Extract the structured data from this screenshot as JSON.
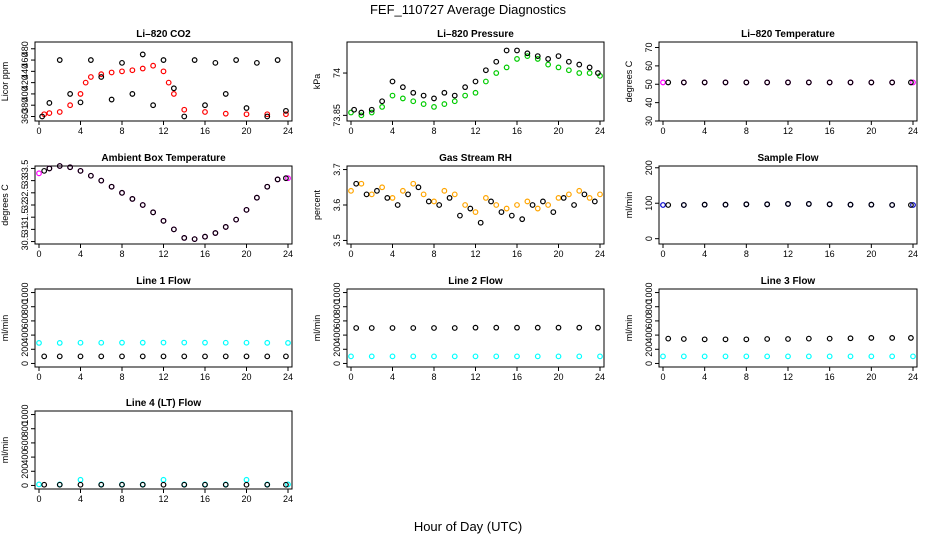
{
  "figure": {
    "title": "FEF_110727  Average Diagnostics",
    "xlabel": "Hour of Day (UTC)"
  },
  "chart_data": [
    {
      "type": "scatter",
      "title": "Li–820 CO2",
      "ylabel": "Licor ppm",
      "xlim": [
        0,
        24
      ],
      "xticks": [
        0,
        4,
        8,
        12,
        16,
        20,
        24
      ],
      "ylim": [
        352,
        492
      ],
      "yticks": [
        360,
        380,
        400,
        420,
        440,
        460,
        480
      ],
      "series": [
        {
          "color": "#ff0000",
          "x": [
            0.5,
            1,
            2,
            3,
            4,
            4.5,
            5,
            6,
            7,
            8,
            9,
            10,
            11,
            12,
            12.5,
            13,
            14,
            16,
            18,
            20,
            22,
            23.8
          ],
          "y": [
            364,
            366,
            368,
            380,
            400,
            420,
            430,
            435,
            438,
            440,
            442,
            445,
            450,
            440,
            420,
            400,
            372,
            368,
            365,
            364,
            364,
            364
          ]
        },
        {
          "color": "#000000",
          "x": [
            0.3,
            1,
            2,
            3,
            4,
            5,
            6,
            7,
            8,
            9,
            10,
            11,
            12,
            13,
            14,
            15,
            16,
            17,
            18,
            19,
            20,
            21,
            22,
            23,
            23.8
          ],
          "y": [
            360,
            384,
            460,
            400,
            385,
            460,
            430,
            390,
            455,
            400,
            470,
            380,
            460,
            410,
            360,
            460,
            380,
            455,
            400,
            460,
            375,
            455,
            360,
            460,
            370
          ]
        }
      ]
    },
    {
      "type": "scatter",
      "title": "Li–820 Pressure",
      "ylabel": "kPa",
      "xlim": [
        0,
        24
      ],
      "xticks": [
        0,
        4,
        8,
        12,
        16,
        20,
        24
      ],
      "ylim": [
        73.83,
        74.11
      ],
      "yticks": [
        73.85,
        74.0
      ],
      "series": [
        {
          "color": "#00cc00",
          "x": [
            0,
            1,
            2,
            3,
            4,
            5,
            6,
            7,
            8,
            9,
            10,
            11,
            12,
            13,
            14,
            15,
            16,
            17,
            18,
            19,
            20,
            21,
            22,
            23,
            24
          ],
          "y": [
            73.86,
            73.85,
            73.86,
            73.88,
            73.92,
            73.91,
            73.9,
            73.89,
            73.88,
            73.89,
            73.9,
            73.92,
            73.93,
            73.97,
            74.0,
            74.02,
            74.05,
            74.06,
            74.05,
            74.03,
            74.02,
            74.01,
            74.0,
            74.0,
            73.99
          ]
        },
        {
          "color": "#000000",
          "x": [
            0.3,
            1,
            2,
            3,
            4,
            5,
            6,
            7,
            8,
            9,
            10,
            11,
            12,
            13,
            14,
            15,
            16,
            17,
            18,
            19,
            20,
            21,
            22,
            23,
            23.8
          ],
          "y": [
            73.87,
            73.86,
            73.87,
            73.9,
            73.97,
            73.95,
            73.93,
            73.92,
            73.91,
            73.93,
            73.92,
            73.95,
            73.97,
            74.01,
            74.04,
            74.08,
            74.08,
            74.07,
            74.06,
            74.05,
            74.06,
            74.04,
            74.03,
            74.02,
            74.0
          ]
        }
      ]
    },
    {
      "type": "scatter",
      "title": "Li–820 Temperature",
      "ylabel": "degrees C",
      "xlim": [
        0,
        24
      ],
      "xticks": [
        0,
        4,
        8,
        12,
        16,
        20,
        24
      ],
      "ylim": [
        30,
        73
      ],
      "yticks": [
        30,
        40,
        50,
        60,
        70
      ],
      "series": [
        {
          "color": "#ff00ff",
          "x": [
            0,
            2,
            4,
            6,
            8,
            10,
            12,
            14,
            16,
            18,
            20,
            22,
            24
          ],
          "y": [
            51,
            51,
            51,
            51,
            51,
            51,
            51,
            51,
            51,
            51,
            51,
            51,
            51
          ]
        },
        {
          "color": "#000000",
          "x": [
            0.5,
            2,
            4,
            6,
            8,
            10,
            12,
            14,
            16,
            18,
            20,
            22,
            23.8
          ],
          "y": [
            51,
            51,
            51,
            51,
            51,
            51,
            51,
            51,
            51,
            51,
            51,
            51,
            51
          ]
        }
      ]
    },
    {
      "type": "scatter",
      "title": "Ambient Box Temperature",
      "ylabel": "degrees C",
      "xlim": [
        0,
        24
      ],
      "xticks": [
        0,
        4,
        8,
        12,
        16,
        20,
        24
      ],
      "ylim": [
        30.4,
        33.6
      ],
      "yticks": [
        30.5,
        31.0,
        31.5,
        32.0,
        32.5,
        33.0,
        33.5
      ],
      "series": [
        {
          "color": "#ff00ff",
          "x": [
            0,
            1,
            2,
            3,
            4,
            5,
            6,
            7,
            8,
            9,
            10,
            11,
            12,
            13,
            14,
            15,
            16,
            17,
            18,
            19,
            20,
            21,
            22,
            23,
            24
          ],
          "y": [
            33.3,
            33.5,
            33.6,
            33.55,
            33.4,
            33.2,
            33.0,
            32.75,
            32.5,
            32.25,
            32.0,
            31.7,
            31.35,
            31.0,
            30.65,
            30.6,
            30.7,
            30.85,
            31.1,
            31.4,
            31.8,
            32.3,
            32.75,
            33.05,
            33.1
          ]
        },
        {
          "color": "#000000",
          "x": [
            0.5,
            1,
            2,
            3,
            4,
            5,
            6,
            7,
            8,
            9,
            10,
            11,
            12,
            13,
            14,
            15,
            16,
            17,
            18,
            19,
            20,
            21,
            22,
            23,
            23.8
          ],
          "y": [
            33.4,
            33.5,
            33.6,
            33.55,
            33.4,
            33.2,
            33.0,
            32.75,
            32.5,
            32.25,
            32.0,
            31.7,
            31.35,
            31.0,
            30.65,
            30.6,
            30.7,
            30.85,
            31.1,
            31.4,
            31.8,
            32.3,
            32.75,
            33.05,
            33.1
          ]
        }
      ]
    },
    {
      "type": "scatter",
      "title": "Gas Stream RH",
      "ylabel": "percent",
      "xlim": [
        0,
        24
      ],
      "xticks": [
        0,
        4,
        8,
        12,
        16,
        20,
        24
      ],
      "ylim": [
        3.49,
        3.71
      ],
      "yticks": [
        3.5,
        3.6,
        3.7
      ],
      "series": [
        {
          "color": "#ffa500",
          "x": [
            0,
            1,
            2,
            3,
            4,
            5,
            6,
            7,
            8,
            9,
            10,
            11,
            12,
            13,
            14,
            15,
            16,
            17,
            18,
            19,
            20,
            21,
            22,
            23,
            24
          ],
          "y": [
            3.64,
            3.66,
            3.63,
            3.65,
            3.62,
            3.64,
            3.66,
            3.63,
            3.61,
            3.64,
            3.63,
            3.6,
            3.58,
            3.62,
            3.6,
            3.59,
            3.6,
            3.61,
            3.59,
            3.6,
            3.62,
            3.63,
            3.64,
            3.62,
            3.63
          ]
        },
        {
          "color": "#000000",
          "x": [
            0.5,
            1.5,
            2.5,
            3.5,
            4.5,
            5.5,
            6.5,
            7.5,
            8.5,
            9.5,
            10.5,
            11.5,
            12.5,
            13.5,
            14.5,
            15.5,
            16.5,
            17.5,
            18.5,
            19.5,
            20.5,
            21.5,
            22.5,
            23.5
          ],
          "y": [
            3.66,
            3.63,
            3.64,
            3.62,
            3.6,
            3.63,
            3.65,
            3.61,
            3.6,
            3.62,
            3.57,
            3.59,
            3.55,
            3.61,
            3.58,
            3.57,
            3.56,
            3.6,
            3.61,
            3.58,
            3.62,
            3.6,
            3.63,
            3.61
          ]
        }
      ]
    },
    {
      "type": "scatter",
      "title": "Sample Flow",
      "ylabel": "ml/min",
      "xlim": [
        0,
        24
      ],
      "xticks": [
        0,
        4,
        8,
        12,
        16,
        20,
        24
      ],
      "ylim": [
        -15,
        205
      ],
      "yticks": [
        0,
        100,
        200
      ],
      "series": [
        {
          "color": "#0000cc",
          "x": [
            0,
            2,
            4,
            6,
            8,
            10,
            12,
            14,
            16,
            18,
            20,
            22,
            24
          ],
          "y": [
            95,
            95,
            96,
            96,
            97,
            97,
            98,
            98,
            97,
            96,
            96,
            95,
            95
          ]
        },
        {
          "color": "#000000",
          "x": [
            0.5,
            2,
            4,
            6,
            8,
            10,
            12,
            14,
            16,
            18,
            20,
            22,
            23.8
          ],
          "y": [
            95,
            95,
            96,
            96,
            97,
            97,
            98,
            98,
            97,
            96,
            96,
            95,
            95
          ]
        }
      ]
    },
    {
      "type": "scatter",
      "title": "Line 1 Flow",
      "ylabel": "ml/min",
      "xlim": [
        0,
        24
      ],
      "xticks": [
        0,
        4,
        8,
        12,
        16,
        20,
        24
      ],
      "ylim": [
        -50,
        1050
      ],
      "yticks": [
        0,
        200,
        400,
        600,
        800,
        1000
      ],
      "series": [
        {
          "color": "#00ffff",
          "x": [
            0,
            2,
            4,
            6,
            8,
            10,
            12,
            14,
            16,
            18,
            20,
            22,
            24
          ],
          "y": [
            290,
            290,
            292,
            292,
            293,
            293,
            294,
            294,
            293,
            292,
            292,
            291,
            290
          ]
        },
        {
          "color": "#000000",
          "x": [
            0.5,
            2,
            4,
            6,
            8,
            10,
            12,
            14,
            16,
            18,
            20,
            22,
            23.8
          ],
          "y": [
            100,
            100,
            100,
            100,
            100,
            100,
            100,
            100,
            100,
            100,
            100,
            100,
            100
          ]
        }
      ]
    },
    {
      "type": "scatter",
      "title": "Line 2 Flow",
      "ylabel": "ml/min",
      "xlim": [
        0,
        24
      ],
      "xticks": [
        0,
        4,
        8,
        12,
        16,
        20,
        24
      ],
      "ylim": [
        -50,
        1050
      ],
      "yticks": [
        0,
        200,
        400,
        600,
        800,
        1000
      ],
      "series": [
        {
          "color": "#00ffff",
          "x": [
            0,
            2,
            4,
            6,
            8,
            10,
            12,
            14,
            16,
            18,
            20,
            22,
            24
          ],
          "y": [
            100,
            100,
            100,
            100,
            100,
            100,
            100,
            100,
            100,
            100,
            100,
            100,
            100
          ]
        },
        {
          "color": "#000000",
          "x": [
            0.5,
            2,
            4,
            6,
            8,
            10,
            12,
            14,
            16,
            18,
            20,
            22,
            23.8
          ],
          "y": [
            500,
            500,
            500,
            500,
            500,
            500,
            505,
            505,
            505,
            505,
            505,
            505,
            505
          ]
        }
      ]
    },
    {
      "type": "scatter",
      "title": "Line 3 Flow",
      "ylabel": "ml/min",
      "xlim": [
        0,
        24
      ],
      "xticks": [
        0,
        4,
        8,
        12,
        16,
        20,
        24
      ],
      "ylim": [
        -50,
        1050
      ],
      "yticks": [
        0,
        200,
        400,
        600,
        800,
        1000
      ],
      "series": [
        {
          "color": "#00ffff",
          "x": [
            0,
            2,
            4,
            6,
            8,
            10,
            12,
            14,
            16,
            18,
            20,
            22,
            24
          ],
          "y": [
            100,
            100,
            100,
            100,
            100,
            100,
            100,
            100,
            100,
            100,
            100,
            100,
            100
          ]
        },
        {
          "color": "#000000",
          "x": [
            0.5,
            2,
            4,
            6,
            8,
            10,
            12,
            14,
            16,
            18,
            20,
            22,
            23.8
          ],
          "y": [
            350,
            345,
            340,
            340,
            340,
            345,
            345,
            350,
            350,
            355,
            360,
            360,
            360
          ]
        }
      ]
    },
    {
      "type": "scatter",
      "title": "Line 4 (LT) Flow",
      "ylabel": "ml/min",
      "xlim": [
        0,
        24
      ],
      "xticks": [
        0,
        4,
        8,
        12,
        16,
        20,
        24
      ],
      "ylim": [
        -50,
        1050
      ],
      "yticks": [
        0,
        200,
        400,
        600,
        800,
        1000
      ],
      "series": [
        {
          "color": "#00ffff",
          "x": [
            0,
            2,
            4,
            6,
            8,
            10,
            12,
            14,
            16,
            18,
            20,
            22,
            24
          ],
          "y": [
            15,
            15,
            80,
            15,
            15,
            15,
            80,
            15,
            15,
            15,
            80,
            15,
            15
          ]
        },
        {
          "color": "#000000",
          "x": [
            0.5,
            2,
            4,
            6,
            8,
            10,
            12,
            14,
            16,
            18,
            20,
            22,
            23.8
          ],
          "y": [
            10,
            10,
            10,
            10,
            10,
            10,
            10,
            10,
            10,
            10,
            10,
            10,
            10
          ]
        }
      ]
    }
  ]
}
